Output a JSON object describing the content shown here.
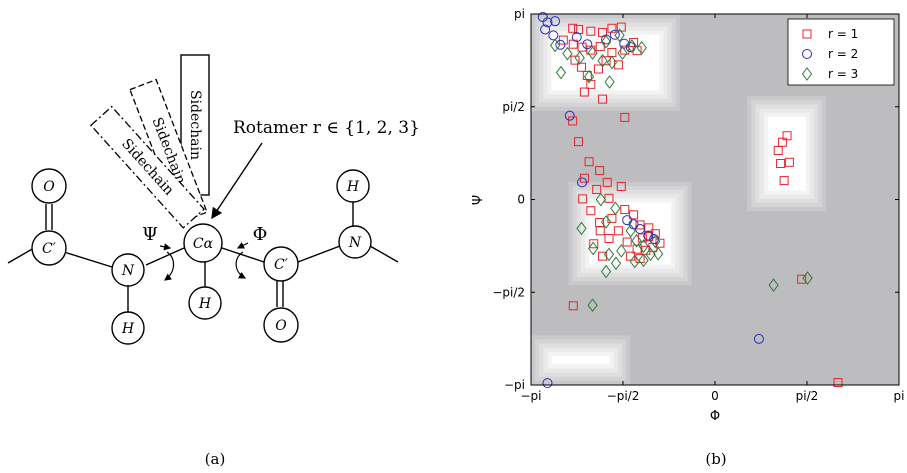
{
  "panel_a": {
    "caption": "(a)",
    "sidechains": [
      "Sidechain",
      "Sidechain",
      "Sidechain"
    ],
    "rotamer_label": "Rotamer r ∈ {1, 2, 3}",
    "angle_psi": "Ψ",
    "angle_phi": "Φ",
    "atoms": {
      "o_left": "O",
      "c_prime_left": "C′",
      "n_left": "N",
      "h_n_left": "H",
      "c_alpha": "Cα",
      "h_alpha": "H",
      "c_prime_right": "C′",
      "o_right": "O",
      "n_right": "N",
      "h_n_right": "H"
    }
  },
  "panel_b": {
    "caption": "(b)",
    "colors": {
      "r1": "#e8242a",
      "r2": "#2b2bb8",
      "r3": "#2f7a3a",
      "background": "#bdbdbf"
    }
  },
  "chart_data": {
    "type": "scatter",
    "xlabel": "Φ",
    "ylabel": "Ψ",
    "xlim": [
      -3.1416,
      3.1416
    ],
    "ylim": [
      -3.1416,
      3.1416
    ],
    "xticks": [
      {
        "value": -3.1416,
        "label": "−pi"
      },
      {
        "value": -1.5708,
        "label": "−pi/2"
      },
      {
        "value": 0,
        "label": "0"
      },
      {
        "value": 1.5708,
        "label": "pi/2"
      },
      {
        "value": 3.1416,
        "label": "pi"
      }
    ],
    "yticks": [
      {
        "value": 3.1416,
        "label": "pi"
      },
      {
        "value": 1.5708,
        "label": "pi/2"
      },
      {
        "value": 0,
        "label": "0"
      },
      {
        "value": -1.5708,
        "label": "−pi/2"
      },
      {
        "value": -3.1416,
        "label": "−pi"
      }
    ],
    "legend_position": "top-right",
    "series": [
      {
        "name": "r = 1",
        "marker": "square",
        "color": "#e8242a",
        "points": [
          [
            -2.43,
            2.9
          ],
          [
            -2.33,
            2.88
          ],
          [
            -2.12,
            2.85
          ],
          [
            -1.92,
            2.83
          ],
          [
            -1.76,
            2.9
          ],
          [
            -1.6,
            2.92
          ],
          [
            -1.39,
            2.66
          ],
          [
            -2.59,
            2.7
          ],
          [
            -2.42,
            2.63
          ],
          [
            -2.27,
            2.58
          ],
          [
            -2.12,
            2.53
          ],
          [
            -1.96,
            2.59
          ],
          [
            -1.76,
            2.49
          ],
          [
            -1.54,
            2.53
          ],
          [
            -1.33,
            2.52
          ],
          [
            -2.39,
            2.36
          ],
          [
            -2.28,
            2.24
          ],
          [
            -2.18,
            2.1
          ],
          [
            -1.99,
            2.21
          ],
          [
            -1.86,
            2.35
          ],
          [
            -1.65,
            2.28
          ],
          [
            -2.12,
            1.95
          ],
          [
            -1.92,
            1.7
          ],
          [
            -2.23,
            1.82
          ],
          [
            -1.54,
            1.39
          ],
          [
            -2.43,
            1.33
          ],
          [
            -2.33,
            0.98
          ],
          [
            -2.15,
            0.64
          ],
          [
            -1.97,
            0.49
          ],
          [
            -1.84,
            0.29
          ],
          [
            -2.23,
            0.36
          ],
          [
            -2.02,
            0.17
          ],
          [
            -1.81,
            0.02
          ],
          [
            -1.6,
            0.22
          ],
          [
            -2.26,
            0.01
          ],
          [
            -2.12,
            -0.19
          ],
          [
            -1.97,
            -0.39
          ],
          [
            -1.76,
            -0.32
          ],
          [
            -1.54,
            -0.17
          ],
          [
            -1.39,
            -0.26
          ],
          [
            -1.28,
            -0.43
          ],
          [
            -1.24,
            -0.65
          ],
          [
            -1.13,
            -0.63
          ],
          [
            -1.06,
            -0.81
          ],
          [
            -1.18,
            -0.86
          ],
          [
            -1.33,
            -0.84
          ],
          [
            -1.5,
            -0.72
          ],
          [
            -1.65,
            -0.53
          ],
          [
            -1.81,
            -0.66
          ],
          [
            -1.96,
            -0.53
          ],
          [
            -2.07,
            -0.75
          ],
          [
            -1.92,
            -0.96
          ],
          [
            -1.13,
            -0.48
          ],
          [
            -1.02,
            -0.58
          ],
          [
            -0.94,
            -0.74
          ],
          [
            -1.28,
            -1.0
          ],
          [
            -1.44,
            -0.96
          ],
          [
            -2.42,
            -1.8
          ],
          [
            1.08,
            0.83
          ],
          [
            1.15,
            0.97
          ],
          [
            1.23,
            1.08
          ],
          [
            1.27,
            0.63
          ],
          [
            1.12,
            0.61
          ],
          [
            1.18,
            0.32
          ],
          [
            1.48,
            -1.35
          ],
          [
            2.1,
            -3.1
          ]
        ]
      },
      {
        "name": "r = 2",
        "marker": "circle",
        "color": "#2b2bb8",
        "points": [
          [
            -2.94,
            3.09
          ],
          [
            -2.86,
            3.0
          ],
          [
            -2.73,
            3.02
          ],
          [
            -2.9,
            2.88
          ],
          [
            -2.76,
            2.78
          ],
          [
            -2.64,
            2.62
          ],
          [
            -2.36,
            2.75
          ],
          [
            -2.18,
            2.63
          ],
          [
            -1.86,
            2.71
          ],
          [
            -1.71,
            2.79
          ],
          [
            -1.55,
            2.64
          ],
          [
            -1.44,
            2.58
          ],
          [
            -2.48,
            1.42
          ],
          [
            -2.27,
            0.29
          ],
          [
            -1.5,
            -0.35
          ],
          [
            -1.39,
            -0.42
          ],
          [
            -1.28,
            -0.5
          ],
          [
            -1.14,
            -0.61
          ],
          [
            -1.04,
            -0.67
          ],
          [
            -2.86,
            -3.11
          ],
          [
            0.75,
            -2.36
          ]
        ]
      },
      {
        "name": "r = 3",
        "marker": "diamond",
        "color": "#2f7a3a",
        "points": [
          [
            -2.73,
            2.61
          ],
          [
            -2.52,
            2.47
          ],
          [
            -2.31,
            2.4
          ],
          [
            -2.09,
            2.48
          ],
          [
            -1.92,
            2.35
          ],
          [
            -1.76,
            2.32
          ],
          [
            -1.58,
            2.48
          ],
          [
            -1.42,
            2.6
          ],
          [
            -1.25,
            2.57
          ],
          [
            -1.63,
            2.78
          ],
          [
            -1.86,
            2.67
          ],
          [
            -2.63,
            2.15
          ],
          [
            -2.15,
            2.08
          ],
          [
            -1.8,
            1.99
          ],
          [
            -1.95,
            0.0
          ],
          [
            -1.86,
            -0.38
          ],
          [
            -1.7,
            -0.15
          ],
          [
            -1.44,
            -0.53
          ],
          [
            -1.34,
            -0.7
          ],
          [
            -1.22,
            -0.79
          ],
          [
            -1.1,
            -0.93
          ],
          [
            -1.02,
            -0.71
          ],
          [
            -0.97,
            -0.92
          ],
          [
            -1.22,
            -1.03
          ],
          [
            -1.37,
            -1.05
          ],
          [
            -1.6,
            -0.87
          ],
          [
            -1.81,
            -0.93
          ],
          [
            -2.08,
            -0.83
          ],
          [
            -2.28,
            -0.49
          ],
          [
            -1.86,
            -1.22
          ],
          [
            -1.69,
            -1.08
          ],
          [
            1.0,
            -1.45
          ],
          [
            1.58,
            -1.33
          ],
          [
            -2.09,
            -1.79
          ]
        ]
      }
    ]
  }
}
